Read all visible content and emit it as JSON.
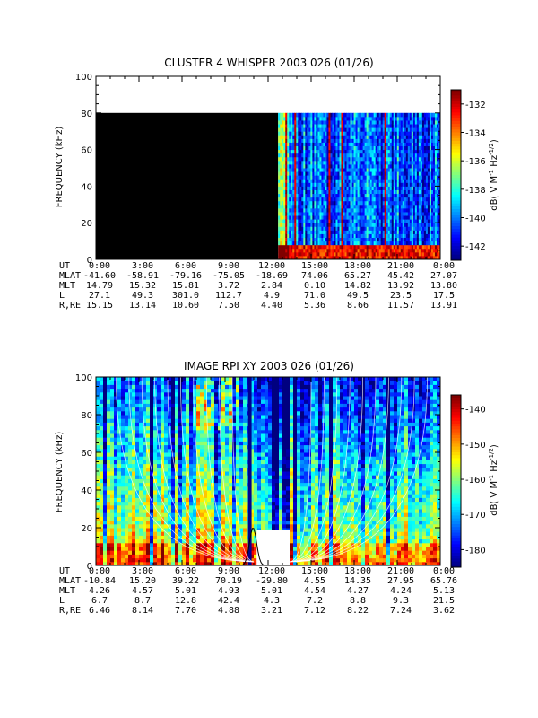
{
  "chart_data": [
    {
      "type": "heatmap",
      "title": "CLUSTER 4 WHISPER 2003 026 (01/26)",
      "ylabel": "FREQUENCY (kHz)",
      "ylim": [
        0,
        100
      ],
      "y_ticks": [
        "0",
        "20",
        "40",
        "60",
        "80",
        "100"
      ],
      "xlim_hours": [
        0,
        24
      ],
      "x_ticks": [
        "0:00",
        "3:00",
        "6:00",
        "9:00",
        "12:00",
        "15:00",
        "18:00",
        "21:00",
        "0:00"
      ],
      "data_region": {
        "freq_max_khz": 80,
        "no_data_before_hours": 12.7,
        "no_data_color": "#000000"
      },
      "colorbar": {
        "label_parts": [
          "dB( V M",
          "-1",
          " Hz",
          "-1/2",
          ")"
        ],
        "range": [
          -143,
          -131
        ],
        "ticks": [
          "-132",
          "-134",
          "-136",
          "-138",
          "-140",
          "-142"
        ]
      },
      "ephemeris": [
        {
          "label": "UT",
          "values": [
            "0:00",
            "3:00",
            "6:00",
            "9:00",
            "12:00",
            "15:00",
            "18:00",
            "21:00",
            "0:00"
          ]
        },
        {
          "label": "MLAT",
          "values": [
            "-41.60",
            "-58.91",
            "-79.16",
            "-75.05",
            "-18.69",
            "74.06",
            "65.27",
            "45.42",
            "27.07"
          ]
        },
        {
          "label": "MLT",
          "values": [
            "14.79",
            "15.32",
            "15.81",
            "3.72",
            "2.84",
            "0.10",
            "14.82",
            "13.92",
            "13.80"
          ]
        },
        {
          "label": "L",
          "values": [
            "27.1",
            "49.3",
            "301.0",
            "112.7",
            "4.9",
            "71.0",
            "49.5",
            "23.5",
            "17.5"
          ]
        },
        {
          "label": "R,RE",
          "values": [
            "15.15",
            "13.14",
            "10.60",
            "7.50",
            "4.40",
            "5.36",
            "8.66",
            "11.57",
            "13.91"
          ]
        }
      ]
    },
    {
      "type": "heatmap",
      "title": "IMAGE RPI XY 2003 026 (01/26)",
      "ylabel": "FREQUENCY (kHz)",
      "ylim": [
        0,
        100
      ],
      "y_ticks": [
        "0",
        "20",
        "40",
        "60",
        "80",
        "100"
      ],
      "xlim_hours": [
        0,
        24
      ],
      "x_ticks": [
        "0:00",
        "3:00",
        "6:00",
        "9:00",
        "12:00",
        "15:00",
        "18:00",
        "21:00",
        "0:00"
      ],
      "gap": {
        "start_hours": 11.2,
        "end_hours": 13.5,
        "freq_max_khz": 19
      },
      "colorbar": {
        "label_parts": [
          "dB( V M",
          "-1",
          " Hz",
          "-1/2",
          ")"
        ],
        "range": [
          -185,
          -136
        ],
        "ticks": [
          "-140",
          "-150",
          "-160",
          "-170",
          "-180"
        ]
      },
      "ephemeris": [
        {
          "label": "UT",
          "values": [
            "0:00",
            "3:00",
            "6:00",
            "9:00",
            "12:00",
            "15:00",
            "18:00",
            "21:00",
            "0:00"
          ]
        },
        {
          "label": "MLAT",
          "values": [
            "-10.84",
            "15.20",
            "39.22",
            "70.19",
            "-29.80",
            "4.55",
            "14.35",
            "27.95",
            "65.76"
          ]
        },
        {
          "label": "MLT",
          "values": [
            "4.26",
            "4.57",
            "5.01",
            "4.93",
            "5.01",
            "4.54",
            "4.27",
            "4.24",
            "5.13"
          ]
        },
        {
          "label": "L",
          "values": [
            "6.7",
            "8.7",
            "12.8",
            "42.4",
            "4.3",
            "7.2",
            "8.8",
            "9.3",
            "21.5"
          ]
        },
        {
          "label": "R,RE",
          "values": [
            "6.46",
            "8.14",
            "7.70",
            "4.88",
            "3.21",
            "7.12",
            "8.22",
            "7.24",
            "3.62"
          ]
        }
      ]
    }
  ]
}
